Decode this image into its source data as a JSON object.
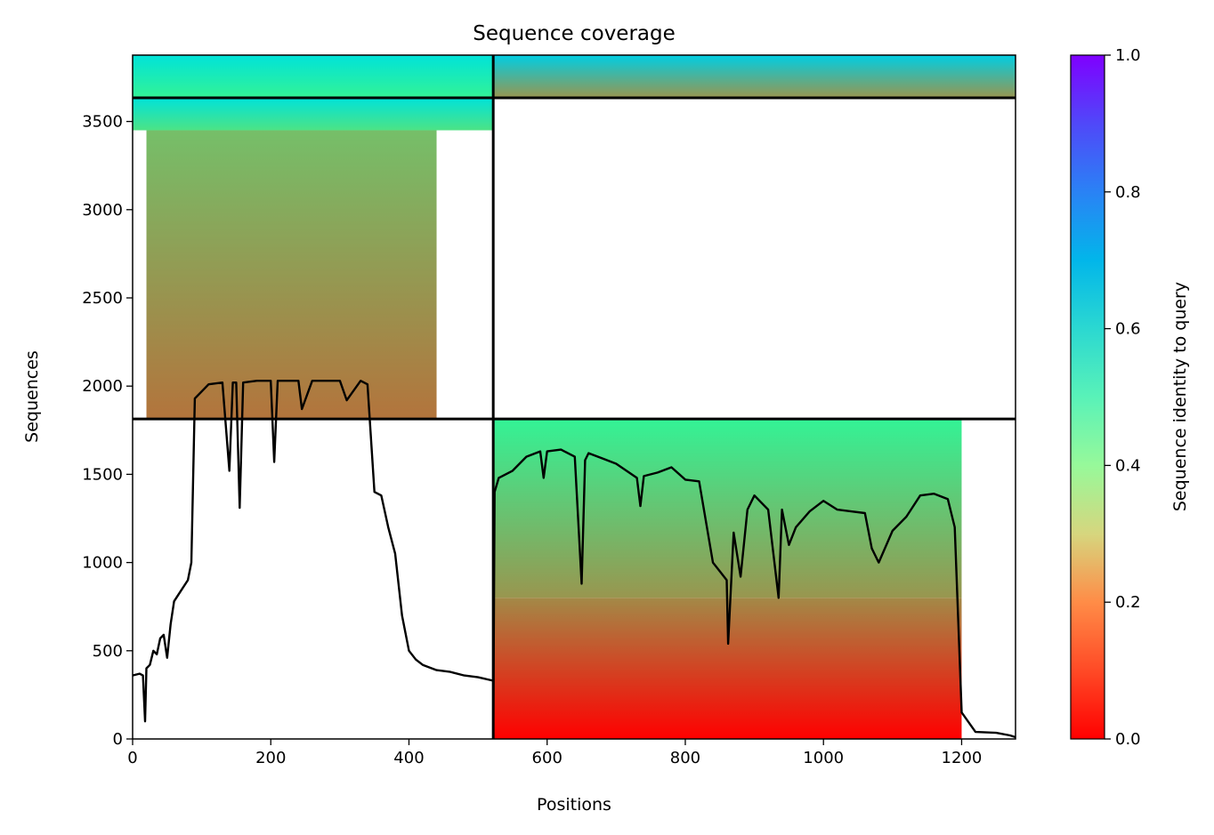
{
  "chart_data": {
    "type": "heatmap",
    "title": "Sequence coverage",
    "xlabel": "Positions",
    "ylabel": "Sequences",
    "colorbar_label": "Sequence identity to query",
    "xlim": [
      0,
      1278
    ],
    "ylim": [
      0,
      3876
    ],
    "x_ticks": [
      "0",
      "200",
      "400",
      "600",
      "800",
      "1000",
      "1200"
    ],
    "x_tick_values": [
      0,
      200,
      400,
      600,
      800,
      1000,
      1200
    ],
    "y_ticks": [
      "0",
      "500",
      "1000",
      "1500",
      "2000",
      "2500",
      "3000",
      "3500"
    ],
    "y_tick_values": [
      0,
      500,
      1000,
      1500,
      2000,
      2500,
      3000,
      3500
    ],
    "colorbar_ticks": [
      "0.0",
      "0.2",
      "0.4",
      "0.6",
      "0.8",
      "1.0"
    ],
    "colorbar_tick_values": [
      0.0,
      0.2,
      0.4,
      0.6,
      0.8,
      1.0
    ],
    "colormap": "rainbow_r",
    "block_boundaries_x": [
      522
    ],
    "block_boundaries_y": [
      1814,
      3634
    ],
    "coverage_blocks": [
      {
        "x": [
          0,
          522
        ],
        "y": [
          3634,
          3876
        ],
        "identity_bottom": 0.4,
        "identity_top": 0.65
      },
      {
        "x": [
          522,
          1278
        ],
        "y": [
          3634,
          3876
        ],
        "identity_bottom": 0.2,
        "identity_top": 0.7
      },
      {
        "x": [
          0,
          522
        ],
        "y": [
          3450,
          3634
        ],
        "identity_bottom": 0.35,
        "identity_top": 0.65
      },
      {
        "x": [
          20,
          440
        ],
        "y": [
          1814,
          3450
        ],
        "identity_bottom": 0.15,
        "identity_top": 0.27
      },
      {
        "x": [
          522,
          1200
        ],
        "y": [
          800,
          1814
        ],
        "identity_bottom": 0.2,
        "identity_top": 0.4
      },
      {
        "x": [
          522,
          1200
        ],
        "y": [
          0,
          800
        ],
        "identity_bottom": 0.0,
        "identity_top": 0.18
      }
    ],
    "coverage_line": {
      "name": "coverage",
      "color": "#000000",
      "x": [
        0,
        10,
        15,
        18,
        20,
        25,
        30,
        35,
        40,
        45,
        50,
        55,
        60,
        70,
        80,
        85,
        90,
        110,
        130,
        140,
        145,
        150,
        155,
        160,
        180,
        200,
        205,
        210,
        240,
        245,
        260,
        280,
        300,
        310,
        330,
        340,
        350,
        360,
        370,
        380,
        390,
        400,
        410,
        420,
        440,
        460,
        480,
        500,
        522,
        522,
        524,
        530,
        550,
        570,
        590,
        595,
        600,
        620,
        640,
        650,
        655,
        660,
        680,
        700,
        730,
        735,
        740,
        760,
        780,
        800,
        820,
        840,
        850,
        860,
        862,
        870,
        880,
        890,
        900,
        920,
        935,
        940,
        950,
        960,
        980,
        1000,
        1020,
        1040,
        1060,
        1070,
        1080,
        1100,
        1120,
        1140,
        1160,
        1180,
        1190,
        1200,
        1220,
        1250,
        1270,
        1278
      ],
      "y": [
        360,
        370,
        360,
        100,
        400,
        420,
        500,
        480,
        570,
        590,
        460,
        650,
        780,
        840,
        900,
        1000,
        1930,
        2010,
        2020,
        1520,
        2020,
        2020,
        1310,
        2020,
        2030,
        2030,
        1570,
        2030,
        2030,
        1870,
        2030,
        2030,
        2030,
        1920,
        2030,
        2010,
        1400,
        1380,
        1200,
        1050,
        700,
        500,
        450,
        420,
        390,
        380,
        360,
        350,
        330,
        20,
        1400,
        1480,
        1520,
        1600,
        1630,
        1480,
        1630,
        1640,
        1600,
        880,
        1580,
        1620,
        1590,
        1560,
        1480,
        1320,
        1490,
        1510,
        1540,
        1470,
        1460,
        1000,
        950,
        900,
        540,
        1170,
        920,
        1300,
        1380,
        1300,
        800,
        1300,
        1100,
        1200,
        1290,
        1350,
        1300,
        1290,
        1280,
        1080,
        1000,
        1180,
        1260,
        1380,
        1390,
        1360,
        1200,
        150,
        40,
        35,
        20,
        10
      ]
    }
  }
}
